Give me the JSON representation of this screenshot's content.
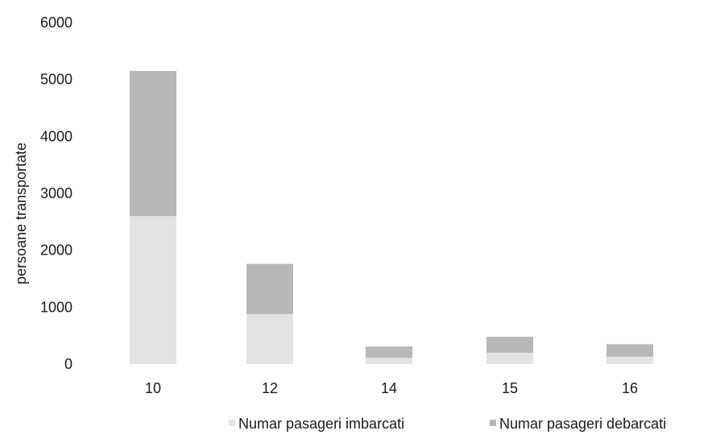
{
  "chart_data": {
    "type": "bar",
    "stacked": true,
    "categories": [
      "10",
      "12",
      "14",
      "15",
      "16"
    ],
    "series": [
      {
        "name": "Numar pasageri imbarcati",
        "values": [
          2600,
          880,
          110,
          200,
          130
        ],
        "color": "#e3e3e3"
      },
      {
        "name": "Numar pasageri debarcati",
        "values": [
          2550,
          880,
          200,
          280,
          220
        ],
        "color": "#b8b8b8"
      }
    ],
    "ylabel": "persoane transportate",
    "xlabel": "",
    "ylim": [
      0,
      6000
    ],
    "yticks": [
      "0",
      "1000",
      "2000",
      "3000",
      "4000",
      "5000",
      "6000"
    ],
    "grid": false,
    "legend_position": "bottom"
  }
}
